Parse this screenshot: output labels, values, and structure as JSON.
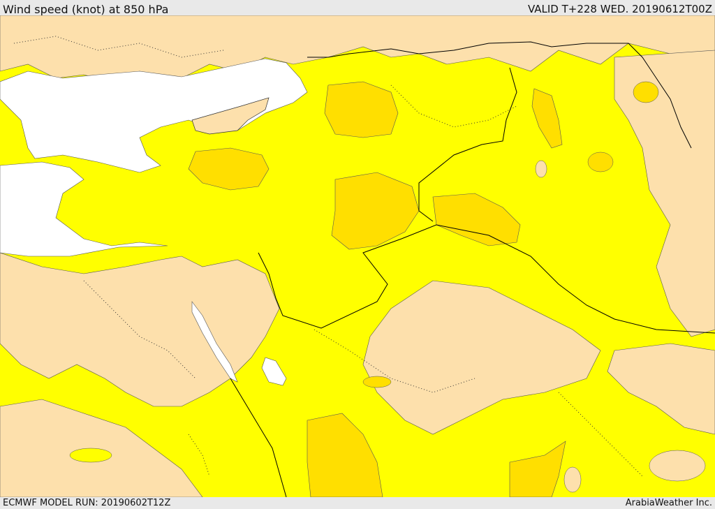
{
  "header": {
    "title": "Wind speed (knot) at 850 hPa",
    "valid": "VALID T+228 WED. 20190612T00Z"
  },
  "footer": {
    "model_run": "ECMWF MODEL RUN: 20190602T12Z",
    "credit": "ArabiaWeather Inc."
  },
  "map": {
    "colors": {
      "sea_white": "#ffffff",
      "wind_low": "#fde0ac",
      "wind_mid": "#ffff00",
      "wind_high": "#ffdf00",
      "wind_higher": "#ffc000",
      "border_line": "#000000"
    }
  }
}
